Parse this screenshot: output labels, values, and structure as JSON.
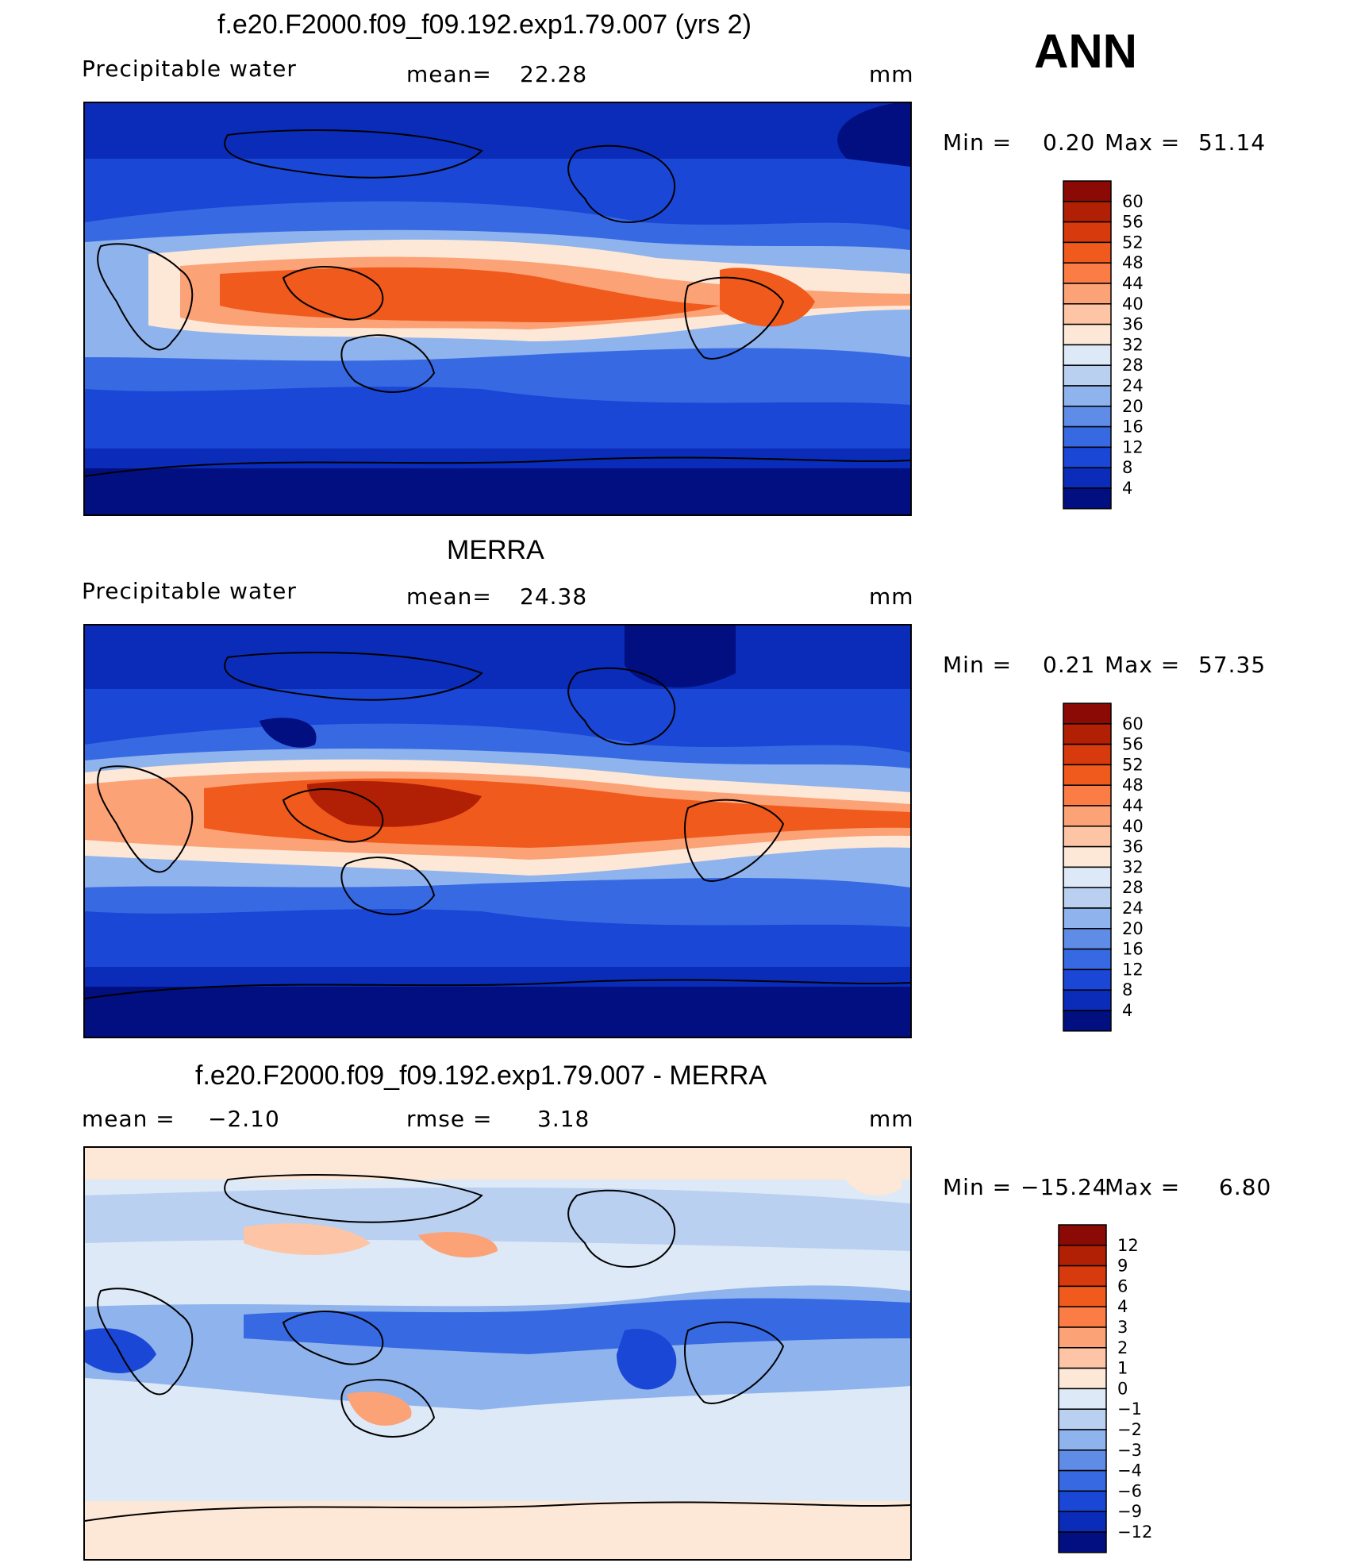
{
  "season": "ANN",
  "units": "mm",
  "panels": [
    {
      "id": "model",
      "title": "f.e20.F2000.f09_f09.192.exp1.79.007 (yrs 2)",
      "left_label": "Precipitable  water",
      "stat_label": "mean=",
      "stat_value": "22.28",
      "units": "mm",
      "min_label": "Min  =",
      "min_value": "0.20",
      "max_label": "Max  =",
      "max_value": "51.14",
      "colorbar_levels": [
        "60",
        "56",
        "52",
        "48",
        "44",
        "40",
        "36",
        "32",
        "28",
        "24",
        "20",
        "16",
        "12",
        "8",
        "4"
      ],
      "colorbar_colors": [
        "#8b0a05",
        "#b11f05",
        "#d63a0d",
        "#f05a1c",
        "#fb7d45",
        "#fca277",
        "#fdc5a5",
        "#fde7d6",
        "#dde9f7",
        "#b9d0f1",
        "#8fb3ec",
        "#5f8ce6",
        "#3769e3",
        "#1a47d6",
        "#0a2cb8",
        "#020f80"
      ]
    },
    {
      "id": "obs",
      "title": "MERRA",
      "left_label": "Precipitable  water",
      "stat_label": "mean=",
      "stat_value": "24.38",
      "units": "mm",
      "min_label": "Min  =",
      "min_value": "0.21",
      "max_label": "Max  =",
      "max_value": "57.35",
      "colorbar_levels": [
        "60",
        "56",
        "52",
        "48",
        "44",
        "40",
        "36",
        "32",
        "28",
        "24",
        "20",
        "16",
        "12",
        "8",
        "4"
      ],
      "colorbar_colors": [
        "#8b0a05",
        "#b11f05",
        "#d63a0d",
        "#f05a1c",
        "#fb7d45",
        "#fca277",
        "#fdc5a5",
        "#fde7d6",
        "#dde9f7",
        "#b9d0f1",
        "#8fb3ec",
        "#5f8ce6",
        "#3769e3",
        "#1a47d6",
        "#0a2cb8",
        "#020f80"
      ]
    },
    {
      "id": "diff",
      "title": "f.e20.F2000.f09_f09.192.exp1.79.007 - MERRA",
      "left_label": "mean  =",
      "left_value": "−2.10",
      "stat_label": "rmse  =",
      "stat_value": "3.18",
      "units": "mm",
      "min_label": "Min  =",
      "min_value": "−15.24",
      "max_label": "Max  =",
      "max_value": "6.80",
      "colorbar_levels": [
        "12",
        "9",
        "6",
        "4",
        "3",
        "2",
        "1",
        "0",
        "−1",
        "−2",
        "−3",
        "−4",
        "−6",
        "−9",
        "−12"
      ],
      "colorbar_colors": [
        "#8b0a05",
        "#b11f05",
        "#d63a0d",
        "#f05a1c",
        "#fb7d45",
        "#fca277",
        "#fdc5a5",
        "#fde7d6",
        "#dde9f7",
        "#b9d0f1",
        "#8fb3ec",
        "#5f8ce6",
        "#3769e3",
        "#1a47d6",
        "#0a2cb8",
        "#020f80"
      ]
    }
  ]
}
